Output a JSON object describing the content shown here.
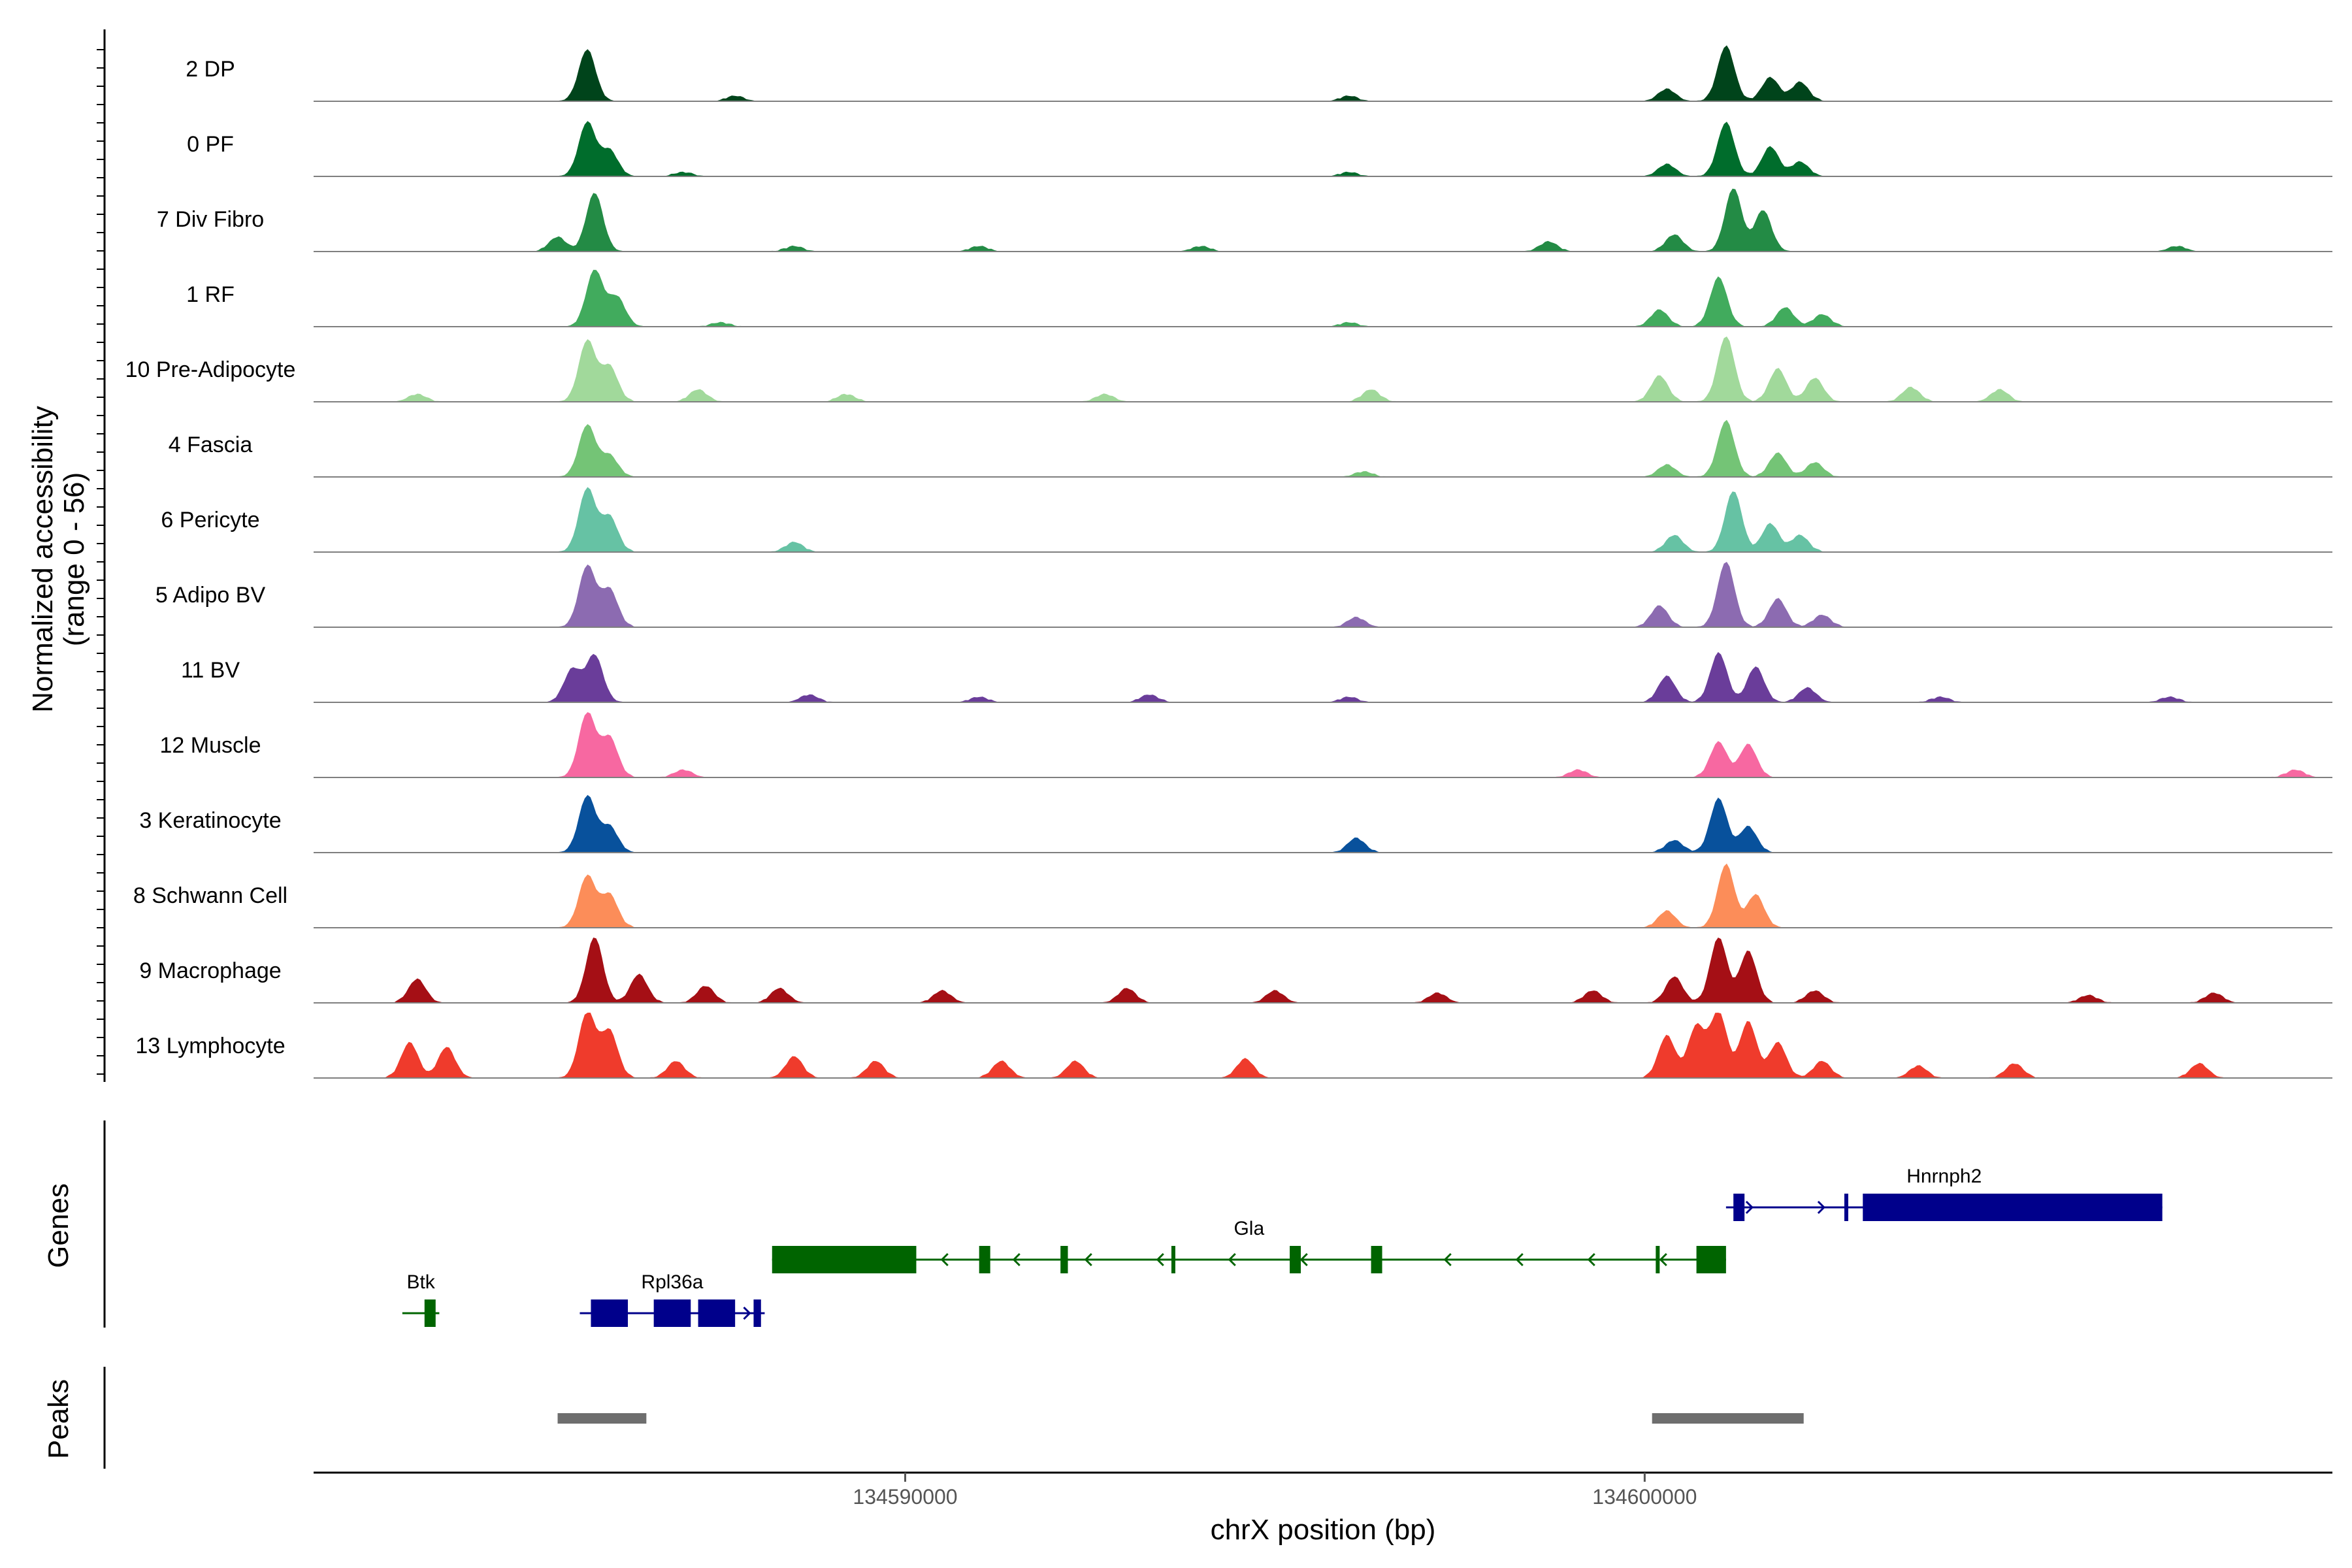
{
  "chart_data": {
    "type": "area",
    "region": {
      "chrom": "chrX",
      "start": 134582000,
      "end": 134609300
    },
    "ylabel": "Normalized accessibility",
    "ylabel_range": "(range 0 - 56)",
    "ylim": [
      0,
      56
    ],
    "xlabel": "chrX position (bp)",
    "xticks": [
      134590000,
      134600000
    ],
    "xtick_labels": [
      "134590000",
      "134600000"
    ],
    "section_labels": {
      "genes": "Genes",
      "peaks": "Peaks"
    },
    "tracks": [
      {
        "label": "2 DP",
        "color": "#00441b",
        "peaks": [
          [
            134585700,
            44
          ],
          [
            134587700,
            4
          ],
          [
            134596000,
            4
          ],
          [
            134600300,
            10
          ],
          [
            134601100,
            47
          ],
          [
            134601700,
            20
          ],
          [
            134602100,
            16
          ]
        ]
      },
      {
        "label": "0 PF",
        "color": "#006d2c",
        "peaks": [
          [
            134585700,
            46
          ],
          [
            134586000,
            22
          ],
          [
            134587000,
            3
          ],
          [
            134596000,
            3
          ],
          [
            134600300,
            10
          ],
          [
            134601100,
            46
          ],
          [
            134601700,
            25
          ],
          [
            134602100,
            12
          ]
        ]
      },
      {
        "label": "7 Div Fibro",
        "color": "#238b45",
        "peaks": [
          [
            134585300,
            12
          ],
          [
            134585800,
            50
          ],
          [
            134588500,
            4
          ],
          [
            134591000,
            4
          ],
          [
            134594000,
            4
          ],
          [
            134598700,
            8
          ],
          [
            134600400,
            14
          ],
          [
            134601200,
            54
          ],
          [
            134601600,
            35
          ],
          [
            134607200,
            4
          ]
        ]
      },
      {
        "label": "1 RF",
        "color": "#41ab5d",
        "peaks": [
          [
            134585800,
            48
          ],
          [
            134586100,
            25
          ],
          [
            134587500,
            3
          ],
          [
            134596000,
            3
          ],
          [
            134600200,
            14
          ],
          [
            134601000,
            42
          ],
          [
            134601900,
            16
          ],
          [
            134602400,
            10
          ]
        ]
      },
      {
        "label": "10 Pre-Adipocyte",
        "color": "#a1d99b",
        "peaks": [
          [
            134583400,
            6
          ],
          [
            134585700,
            52
          ],
          [
            134586000,
            30
          ],
          [
            134587200,
            10
          ],
          [
            134589200,
            6
          ],
          [
            134592700,
            6
          ],
          [
            134596300,
            10
          ],
          [
            134600200,
            22
          ],
          [
            134601100,
            56
          ],
          [
            134601800,
            28
          ],
          [
            134602300,
            20
          ],
          [
            134603600,
            12
          ],
          [
            134604800,
            10
          ]
        ]
      },
      {
        "label": "4 Fascia",
        "color": "#74c476",
        "peaks": [
          [
            134585700,
            44
          ],
          [
            134586000,
            18
          ],
          [
            134596200,
            4
          ],
          [
            134600300,
            10
          ],
          [
            134601100,
            48
          ],
          [
            134601800,
            20
          ],
          [
            134602300,
            12
          ]
        ]
      },
      {
        "label": "6 Pericyte",
        "color": "#66c2a4",
        "peaks": [
          [
            134585700,
            54
          ],
          [
            134586000,
            30
          ],
          [
            134588500,
            8
          ],
          [
            134600400,
            14
          ],
          [
            134601200,
            52
          ],
          [
            134601700,
            24
          ],
          [
            134602100,
            14
          ]
        ]
      },
      {
        "label": "5 Adipo BV",
        "color": "#8c6bb1",
        "peaks": [
          [
            134585700,
            52
          ],
          [
            134586000,
            32
          ],
          [
            134596100,
            8
          ],
          [
            134600200,
            18
          ],
          [
            134601100,
            56
          ],
          [
            134601800,
            24
          ],
          [
            134602400,
            10
          ]
        ]
      },
      {
        "label": "11 BV",
        "color": "#6a3d9a",
        "peaks": [
          [
            134585500,
            28
          ],
          [
            134585800,
            40
          ],
          [
            134588700,
            6
          ],
          [
            134591000,
            4
          ],
          [
            134593300,
            6
          ],
          [
            134596000,
            4
          ],
          [
            134600300,
            22
          ],
          [
            134601000,
            42
          ],
          [
            134601500,
            30
          ],
          [
            134602200,
            12
          ],
          [
            134604000,
            4
          ],
          [
            134607100,
            4
          ]
        ]
      },
      {
        "label": "12 Muscle",
        "color": "#f768a1",
        "peaks": [
          [
            134585700,
            55
          ],
          [
            134586000,
            34
          ],
          [
            134587000,
            6
          ],
          [
            134599100,
            6
          ],
          [
            134601000,
            30
          ],
          [
            134601400,
            28
          ],
          [
            134608800,
            6
          ]
        ]
      },
      {
        "label": "3 Keratinocyte",
        "color": "#08519c",
        "peaks": [
          [
            134585700,
            48
          ],
          [
            134586000,
            22
          ],
          [
            134596100,
            12
          ],
          [
            134600400,
            10
          ],
          [
            134601000,
            46
          ],
          [
            134601400,
            22
          ]
        ]
      },
      {
        "label": "8 Schwann Cell",
        "color": "#fc8d59",
        "peaks": [
          [
            134585700,
            44
          ],
          [
            134586000,
            28
          ],
          [
            134600300,
            14
          ],
          [
            134601100,
            54
          ],
          [
            134601500,
            28
          ]
        ]
      },
      {
        "label": "9 Macrophage",
        "color": "#a50f15",
        "peaks": [
          [
            134583400,
            20
          ],
          [
            134585800,
            56
          ],
          [
            134586400,
            24
          ],
          [
            134587300,
            14
          ],
          [
            134588300,
            12
          ],
          [
            134590500,
            10
          ],
          [
            134593000,
            12
          ],
          [
            134595000,
            10
          ],
          [
            134597200,
            8
          ],
          [
            134599300,
            10
          ],
          [
            134600400,
            22
          ],
          [
            134601000,
            56
          ],
          [
            134601400,
            44
          ],
          [
            134602300,
            10
          ],
          [
            134606000,
            6
          ],
          [
            134607700,
            8
          ]
        ]
      },
      {
        "label": "13 Lymphocyte",
        "color": "#ef3b2c",
        "peaks": [
          [
            134583300,
            30
          ],
          [
            134583800,
            26
          ],
          [
            134585700,
            56
          ],
          [
            134586000,
            40
          ],
          [
            134586900,
            14
          ],
          [
            134588500,
            18
          ],
          [
            134589600,
            14
          ],
          [
            134591300,
            14
          ],
          [
            134592300,
            14
          ],
          [
            134594600,
            16
          ],
          [
            134600300,
            36
          ],
          [
            134600700,
            44
          ],
          [
            134601000,
            56
          ],
          [
            134601400,
            48
          ],
          [
            134601800,
            30
          ],
          [
            134602400,
            14
          ],
          [
            134603700,
            10
          ],
          [
            134605000,
            12
          ],
          [
            134607500,
            12
          ]
        ]
      }
    ],
    "genes": [
      {
        "name": "Btk",
        "color": "#006400",
        "strand": "-",
        "row": 3,
        "start": 134583200,
        "end": 134583700,
        "exons": [
          [
            134583500,
            134583650
          ]
        ]
      },
      {
        "name": "Rpl36a",
        "color": "#00008b",
        "strand": "+",
        "row": 3,
        "start": 134585600,
        "end": 134588100,
        "exons": [
          [
            134585750,
            134586250
          ],
          [
            134586600,
            134587100
          ],
          [
            134587200,
            134587700
          ],
          [
            134587950,
            134588050
          ]
        ]
      },
      {
        "name": "Gla",
        "color": "#006400",
        "strand": "-",
        "row": 2,
        "start": 134588200,
        "end": 134601100,
        "exons": [
          [
            134588200,
            134590150
          ],
          [
            134591000,
            134591150
          ],
          [
            134592100,
            134592200
          ],
          [
            134593600,
            134593650
          ],
          [
            134595200,
            134595350
          ],
          [
            134596300,
            134596450
          ],
          [
            134600150,
            134600200
          ],
          [
            134600700,
            134601100
          ]
        ]
      },
      {
        "name": "Hnrnph2",
        "color": "#00008b",
        "strand": "+",
        "row": 1,
        "start": 134601100,
        "end": 134607000,
        "exons": [
          [
            134601200,
            134601350
          ],
          [
            134602700,
            134602750
          ],
          [
            134602950,
            134607000
          ]
        ]
      }
    ],
    "peak_regions": [
      [
        134585300,
        134586500
      ],
      [
        134600100,
        134602150
      ]
    ]
  }
}
